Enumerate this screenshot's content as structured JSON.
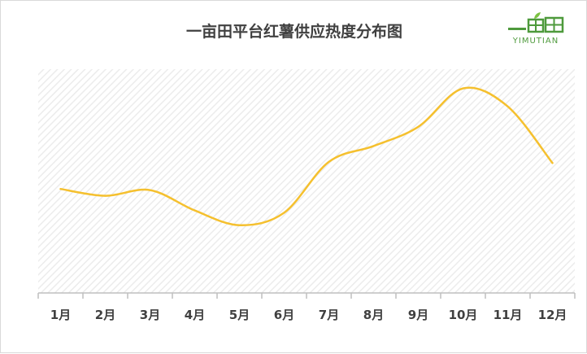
{
  "chart_data": {
    "type": "line",
    "title": "一亩田平台红薯供应热度分布图",
    "categories": [
      "1月",
      "2月",
      "3月",
      "4月",
      "5月",
      "6月",
      "7月",
      "8月",
      "9月",
      "10月",
      "11月",
      "12月"
    ],
    "series": [
      {
        "values": [
          56,
          50,
          55,
          37,
          24,
          35,
          80,
          94,
          111,
          145,
          129,
          79
        ]
      }
    ],
    "ylim": [
      -36,
      162
    ],
    "line_color": "#F5C02E",
    "grid": "hatched"
  },
  "logo": {
    "brand": "一亩田",
    "sub": "YIMUTIAN",
    "color": "#4E9A3C"
  }
}
